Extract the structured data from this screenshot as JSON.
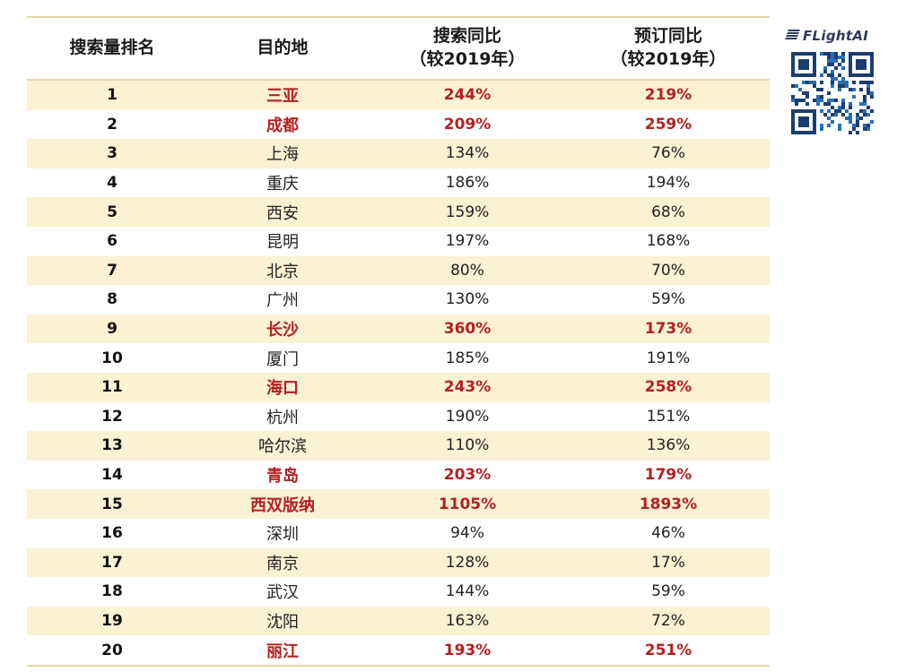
{
  "headers": {
    "rank": "搜索量排名",
    "destination": "目的地",
    "search_line1": "搜索同比",
    "search_line2": "（较2019年）",
    "booking_line1": "预订同比",
    "booking_line2": "（较2019年）"
  },
  "rows": [
    {
      "rank": "1",
      "dest": "三亚",
      "search": "244%",
      "booking": "219%",
      "highlight": true
    },
    {
      "rank": "2",
      "dest": "成都",
      "search": "209%",
      "booking": "259%",
      "highlight": true
    },
    {
      "rank": "3",
      "dest": "上海",
      "search": "134%",
      "booking": "76%",
      "highlight": false
    },
    {
      "rank": "4",
      "dest": "重庆",
      "search": "186%",
      "booking": "194%",
      "highlight": false
    },
    {
      "rank": "5",
      "dest": "西安",
      "search": "159%",
      "booking": "68%",
      "highlight": false
    },
    {
      "rank": "6",
      "dest": "昆明",
      "search": "197%",
      "booking": "168%",
      "highlight": false
    },
    {
      "rank": "7",
      "dest": "北京",
      "search": "80%",
      "booking": "70%",
      "highlight": false
    },
    {
      "rank": "8",
      "dest": "广州",
      "search": "130%",
      "booking": "59%",
      "highlight": false
    },
    {
      "rank": "9",
      "dest": "长沙",
      "search": "360%",
      "booking": "173%",
      "highlight": true
    },
    {
      "rank": "10",
      "dest": "厦门",
      "search": "185%",
      "booking": "191%",
      "highlight": false
    },
    {
      "rank": "11",
      "dest": "海口",
      "search": "243%",
      "booking": "258%",
      "highlight": true
    },
    {
      "rank": "12",
      "dest": "杭州",
      "search": "190%",
      "booking": "151%",
      "highlight": false
    },
    {
      "rank": "13",
      "dest": "哈尔滨",
      "search": "110%",
      "booking": "136%",
      "highlight": false
    },
    {
      "rank": "14",
      "dest": "青岛",
      "search": "203%",
      "booking": "179%",
      "highlight": true
    },
    {
      "rank": "15",
      "dest": "西双版纳",
      "search": "1105%",
      "booking": "1893%",
      "highlight": true
    },
    {
      "rank": "16",
      "dest": "深圳",
      "search": "94%",
      "booking": "46%",
      "highlight": false
    },
    {
      "rank": "17",
      "dest": "南京",
      "search": "128%",
      "booking": "17%",
      "highlight": false
    },
    {
      "rank": "18",
      "dest": "武汉",
      "search": "144%",
      "booking": "59%",
      "highlight": false
    },
    {
      "rank": "19",
      "dest": "沈阳",
      "search": "163%",
      "booking": "72%",
      "highlight": false
    },
    {
      "rank": "20",
      "dest": "丽江",
      "search": "193%",
      "booking": "251%",
      "highlight": true
    }
  ],
  "logo": {
    "text": "FLightAI",
    "icon": "stripes-logo-icon"
  },
  "qr": {
    "icon": "qr-code-icon"
  },
  "colors": {
    "highlight_text": "#b22222",
    "stripe_bg": "#fbf1d3",
    "rule": "#e3d7a8"
  }
}
